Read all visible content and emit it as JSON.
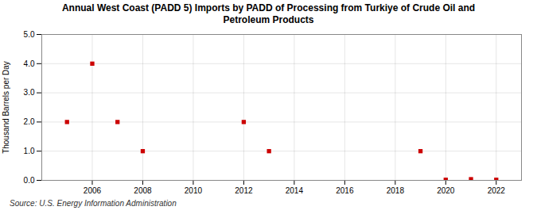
{
  "chart_data": {
    "type": "scatter",
    "title": "Annual West Coast (PADD 5) Imports by PADD of Processing from Turkiye of Crude Oil and\nPetroleum Products",
    "ylabel": "Thousand Barrels per Day",
    "annotations": [
      "Source: U.S. Energy Information Administration"
    ],
    "x": [
      2005,
      2006,
      2007,
      2008,
      2012,
      2013,
      2019,
      2020,
      2021,
      2022
    ],
    "values": [
      2.0,
      4.0,
      2.0,
      1.0,
      2.0,
      1.0,
      1.0,
      0.02,
      0.04,
      0.02
    ],
    "color": "#cc0000",
    "marker": "square",
    "xlim": [
      2004,
      2023
    ],
    "xticks": [
      2006,
      2008,
      2010,
      2012,
      2014,
      2016,
      2018,
      2020,
      2022
    ],
    "ylim": [
      0.0,
      5.0
    ],
    "yticks": [
      {
        "value": 0.0,
        "label": "0.0"
      },
      {
        "value": 1.0,
        "label": "1.0"
      },
      {
        "value": 2.0,
        "label": "2.0"
      },
      {
        "value": 3.0,
        "label": "3.0"
      },
      {
        "value": 4.0,
        "label": "4.0"
      },
      {
        "value": 5.0,
        "label": "5.0"
      }
    ],
    "grid": true
  }
}
